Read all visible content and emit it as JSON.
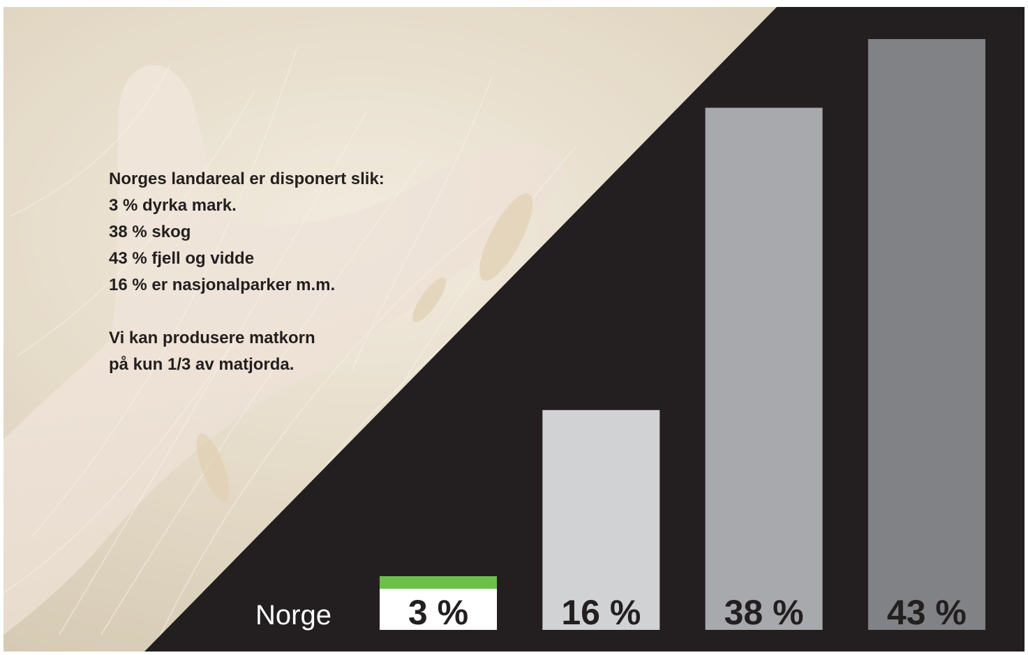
{
  "info": {
    "heading": "Norges landareal er disponert slik:",
    "lines": [
      "3 % dyrka mark.",
      "38 % skog",
      "43 % fjell og vidde",
      "16 % er nasjonalparker m.m."
    ],
    "note_line1": "Vi kan produsere matkorn",
    "note_line2": "på kun 1/3 av matjorda."
  },
  "region_label": "Norge",
  "colors": {
    "dark_background": "#231f20",
    "photo_tint": "#d6c9b0",
    "accent_green": "#6cc04a"
  },
  "chart_data": {
    "type": "bar",
    "ylim": [
      0,
      43
    ],
    "series": [
      {
        "values": [
          3,
          16,
          38,
          43
        ],
        "labels": [
          "3 %",
          "16 %",
          "38 %",
          "43 %"
        ],
        "colors": [
          "#ffffff",
          "#d1d2d4",
          "#a7a9ac",
          "#808285"
        ]
      }
    ]
  }
}
